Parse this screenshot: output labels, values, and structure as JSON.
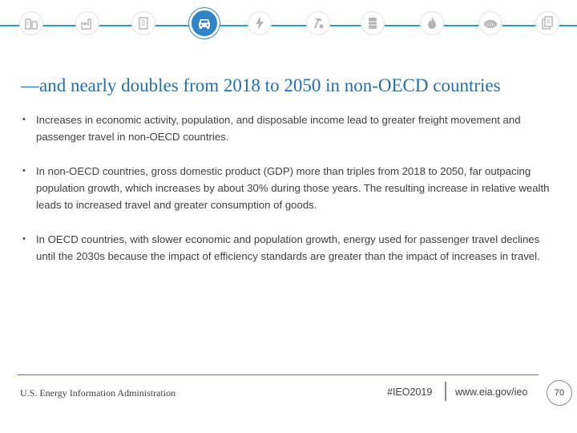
{
  "nav": {
    "icons": [
      {
        "name": "buildings-icon",
        "active": false
      },
      {
        "name": "industry-icon",
        "active": false
      },
      {
        "name": "office-icon",
        "active": false
      },
      {
        "name": "car-icon",
        "active": true
      },
      {
        "name": "electricity-icon",
        "active": false
      },
      {
        "name": "hammer-icon",
        "active": false
      },
      {
        "name": "oil-barrel-icon",
        "active": false
      },
      {
        "name": "flame-icon",
        "active": false
      },
      {
        "name": "co2-icon",
        "active": false
      },
      {
        "name": "documents-icon",
        "active": false
      }
    ],
    "accent_color": "#2e86c8"
  },
  "slide": {
    "title": "—and nearly doubles from 2018 to 2050 in non-OECD countries",
    "bullets": [
      "Increases in economic activity, population, and disposable income lead to greater freight movement and passenger travel in non-OECD countries.",
      "In non-OECD countries, gross domestic product (GDP) more than triples from 2018 to 2050, far outpacing population growth, which increases by about 30% during those years. The resulting increase in relative wealth leads to increased travel and greater consumption of goods.",
      "In OECD countries, with slower economic and population growth, energy used for passenger travel declines until the 2030s because the impact of efficiency standards are greater than the impact of increases in travel."
    ],
    "bullet_marker": "•"
  },
  "footer": {
    "org": "U.S. Energy Information Administration",
    "hashtag": "#IEO2019",
    "url": "www.eia.gov/ieo",
    "page_number": "70"
  }
}
